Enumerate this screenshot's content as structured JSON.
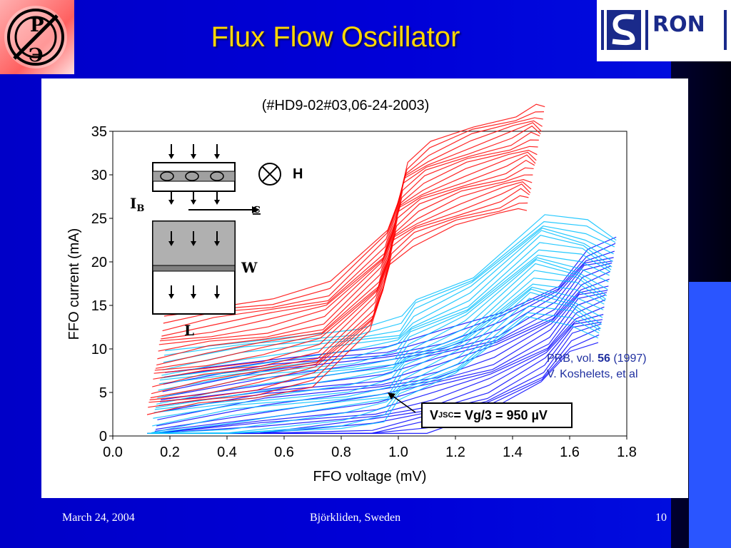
{
  "slide": {
    "title": "Flux Flow Oscillator",
    "footer_date": "March 24, 2004",
    "footer_place": "Björkliden, Sweden",
    "footer_page": "10"
  },
  "logos": {
    "right_text": "RON"
  },
  "chart_data": {
    "type": "line",
    "title": "(#HD9-02#03,06-24-2003)",
    "xlabel": "FFO voltage (mV)",
    "ylabel": "FFO current (mA)",
    "xlim": [
      0.0,
      1.8
    ],
    "ylim": [
      0,
      35
    ],
    "xticks": [
      "0.0",
      "0.2",
      "0.4",
      "0.6",
      "0.8",
      "1.0",
      "1.2",
      "1.4",
      "1.6",
      "1.8"
    ],
    "yticks": [
      "0",
      "5",
      "10",
      "15",
      "20",
      "25",
      "30",
      "35"
    ],
    "series": [
      {
        "color": "#ff0000",
        "x": [
          0.12,
          0.3,
          0.5,
          0.7,
          0.9,
          0.94,
          0.97,
          1.05,
          1.2,
          1.35,
          1.42,
          1.45
        ],
        "y": [
          8.5,
          9.5,
          10.5,
          12,
          18,
          22,
          26,
          28,
          30,
          31.5,
          32.5,
          32
        ]
      },
      {
        "color": "#00c0ff",
        "x": [
          0.12,
          0.4,
          0.8,
          0.95,
          1.0,
          1.2,
          1.45,
          1.6,
          1.7
        ],
        "y": [
          4,
          5.5,
          7,
          8,
          10,
          13,
          20,
          19,
          17
        ]
      },
      {
        "color": "#0000ff",
        "x": [
          0.12,
          0.5,
          0.9,
          1.1,
          1.3,
          1.5,
          1.6,
          1.7
        ],
        "y": [
          1.5,
          3.5,
          5,
          6.5,
          8.5,
          12,
          16,
          17
        ]
      }
    ],
    "annotations": {
      "vjsc_label": "V",
      "vjsc_sub": "JSC",
      "vjsc_rest": "= Vg/3 = 950 µV",
      "ref_line1_prefix": "PRB, vol. ",
      "ref_line1_bold": "56",
      "ref_line1_suffix": "  (1997)",
      "ref_line2": "V. Koshelets, et al",
      "inset_h": "H",
      "inset_ib": "I",
      "inset_ib_sub": "B",
      "inset_c": "c",
      "inset_w": "W",
      "inset_l": "L"
    }
  }
}
